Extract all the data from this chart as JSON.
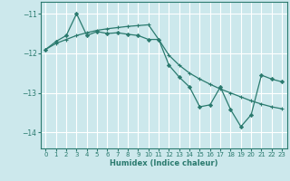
{
  "xlabel": "Humidex (Indice chaleur)",
  "background_color": "#cce8ec",
  "grid_color": "#ffffff",
  "line_color": "#2a7a6e",
  "xlim": [
    -0.5,
    23.5
  ],
  "ylim": [
    -14.4,
    -10.7
  ],
  "yticks": [
    -14,
    -13,
    -12,
    -11
  ],
  "xticks": [
    0,
    1,
    2,
    3,
    4,
    5,
    6,
    7,
    8,
    9,
    10,
    11,
    12,
    13,
    14,
    15,
    16,
    17,
    18,
    19,
    20,
    21,
    22,
    23
  ],
  "line1_x": [
    0,
    1,
    2,
    3,
    4,
    5,
    6,
    7,
    8,
    9,
    10,
    11,
    12,
    13,
    14,
    15,
    16,
    17,
    18,
    19,
    20,
    21,
    22,
    23
  ],
  "line1_y": [
    -11.9,
    -11.7,
    -11.55,
    -11.0,
    -11.55,
    -11.45,
    -11.5,
    -11.48,
    -11.52,
    -11.55,
    -11.65,
    -11.65,
    -12.3,
    -12.6,
    -12.85,
    -13.35,
    -13.3,
    -12.85,
    -13.42,
    -13.85,
    -13.55,
    -12.55,
    -12.65,
    -12.72
  ],
  "line2_x": [
    0,
    1,
    2,
    3,
    4,
    5,
    6,
    7,
    8,
    9,
    10,
    11,
    12,
    13,
    14,
    15,
    16,
    17,
    18,
    19,
    20,
    21,
    22,
    23
  ],
  "line2_y": [
    -11.9,
    -11.75,
    -11.65,
    -11.55,
    -11.48,
    -11.42,
    -11.38,
    -11.35,
    -11.32,
    -11.3,
    -11.28,
    -11.65,
    -12.05,
    -12.3,
    -12.5,
    -12.65,
    -12.78,
    -12.9,
    -13.0,
    -13.1,
    -13.2,
    -13.28,
    -13.35,
    -13.4
  ]
}
